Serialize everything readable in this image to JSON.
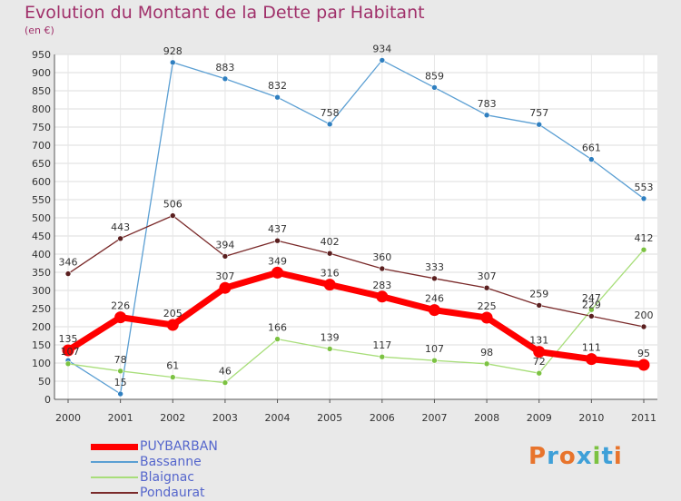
{
  "header": {
    "title": "Evolution du Montant de la Dette par Habitant",
    "subtitle": "(en €)"
  },
  "logo": {
    "text": "Proxiti",
    "colors": [
      "#e8742c",
      "#3fa0d8",
      "#e8742c",
      "#3fa0d8",
      "#7cc242",
      "#3fa0d8",
      "#e8742c"
    ]
  },
  "chart_data": {
    "type": "line",
    "x": [
      "2000",
      "2001",
      "2002",
      "2003",
      "2004",
      "2005",
      "2006",
      "2007",
      "2008",
      "2009",
      "2010",
      "2011"
    ],
    "ylim": [
      0,
      950
    ],
    "yticks": [
      0,
      50,
      100,
      150,
      200,
      250,
      300,
      350,
      400,
      450,
      500,
      550,
      600,
      650,
      700,
      750,
      800,
      850,
      900,
      950
    ],
    "grid": true,
    "legend_position": "bottom-left",
    "series": [
      {
        "name": "Bassanne",
        "color": "#5b9fd3",
        "marker": "#2f7fc0",
        "values": [
          107,
          15,
          928,
          883,
          832,
          758,
          934,
          859,
          783,
          757,
          661,
          553
        ],
        "labels": [
          "",
          "15",
          "928",
          "883",
          "832",
          "758",
          "934",
          "859",
          "783",
          "757",
          "661",
          "553"
        ]
      },
      {
        "name": "Blaignac",
        "color": "#a8de7a",
        "marker": "#7cc242",
        "values": [
          98,
          78,
          61,
          46,
          166,
          139,
          117,
          107,
          98,
          72,
          247,
          412
        ],
        "labels": [
          "",
          "78",
          "61",
          "46",
          "166",
          "139",
          "117",
          "107",
          "98",
          "72",
          "247",
          "412"
        ]
      },
      {
        "name": "Pondaurat",
        "color": "#7a2a2a",
        "marker": "#5a1f1f",
        "values": [
          346,
          443,
          506,
          394,
          437,
          402,
          360,
          333,
          307,
          259,
          229,
          200
        ],
        "labels": [
          "346",
          "443",
          "506",
          "394",
          "437",
          "402",
          "360",
          "333",
          "307",
          "259",
          "229",
          "200"
        ]
      },
      {
        "name": "PUYBARBAN",
        "color": "#ff0000",
        "marker": "#ff0000",
        "values": [
          135,
          226,
          205,
          307,
          349,
          316,
          283,
          246,
          225,
          131,
          111,
          95
        ],
        "labels": [
          "135",
          "226",
          "205",
          "307",
          "349",
          "316",
          "283",
          "246",
          "225",
          "131",
          "111",
          "95"
        ]
      }
    ],
    "extra_labels": [
      "107"
    ],
    "legend_order": [
      "PUYBARBAN",
      "Bassanne",
      "Blaignac",
      "Pondaurat"
    ]
  }
}
